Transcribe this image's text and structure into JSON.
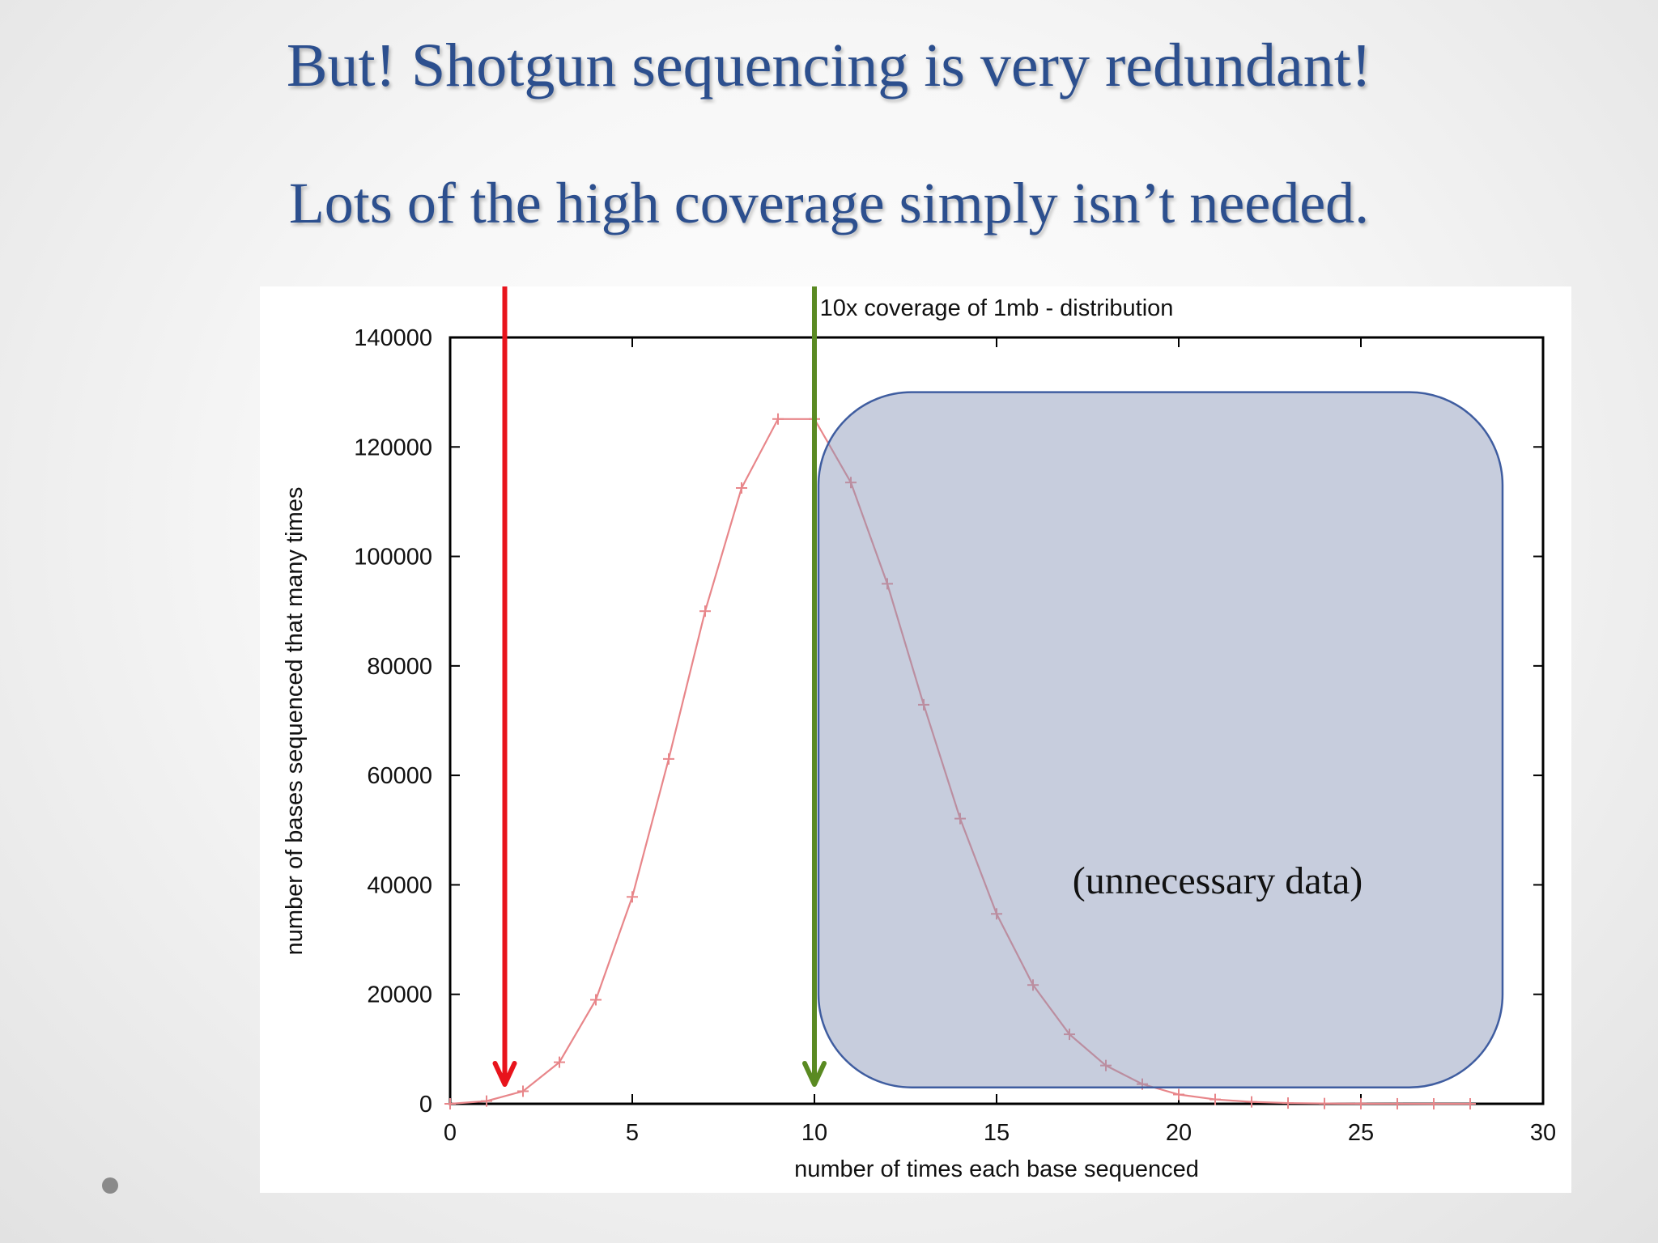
{
  "slide": {
    "title": "But! Shotgun sequencing is very redundant!",
    "subtitle": "Lots of the high coverage simply isn’t needed."
  },
  "chart_data": {
    "type": "line",
    "title": "10x coverage of 1mb - distribution",
    "xlabel": "number of times each base sequenced",
    "ylabel": "number of bases sequenced that many times",
    "xlim": [
      0,
      30
    ],
    "ylim": [
      0,
      140000
    ],
    "xticks": [
      0,
      5,
      10,
      15,
      20,
      25,
      30
    ],
    "yticks": [
      0,
      20000,
      40000,
      60000,
      80000,
      100000,
      120000,
      140000
    ],
    "grid": false,
    "series": [
      {
        "color": "#e8868a",
        "x": [
          0,
          1,
          2,
          3,
          4,
          5,
          6,
          7,
          8,
          9,
          10,
          11,
          12,
          13,
          14,
          15,
          16,
          17,
          18,
          19,
          20,
          21,
          22,
          23,
          24,
          25,
          26,
          27,
          28
        ],
        "y": [
          0,
          500,
          2300,
          7600,
          19000,
          37800,
          63000,
          90000,
          112500,
          125100,
          125100,
          113500,
          95000,
          72900,
          52100,
          34700,
          21700,
          12700,
          7000,
          3600,
          1700,
          800,
          350,
          140,
          50,
          20,
          7,
          2,
          1
        ]
      }
    ],
    "annotations": {
      "red_arrow_x": 1.5,
      "green_arrow_x": 10,
      "red_color": "#e8141c",
      "green_color": "#5a8a22",
      "box_color": "#8a96b8",
      "box_x_range": [
        10,
        29
      ],
      "box_y_range": [
        3000,
        130000
      ],
      "box_label": "(unnecessary data)"
    }
  }
}
